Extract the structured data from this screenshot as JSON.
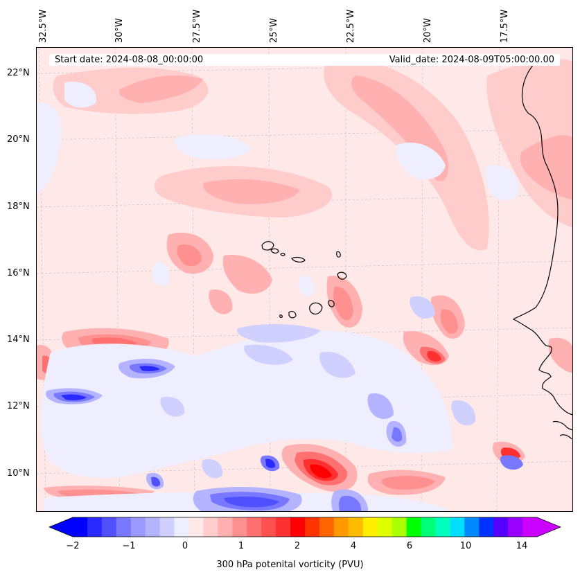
{
  "header": {
    "start_date": "Start date: 2024-08-08_00:00:00",
    "valid_date": "Valid_date: 2024-08-09T05:00:00.00"
  },
  "longitude_labels": [
    "32.5°W",
    "30°W",
    "27.5°W",
    "25°W",
    "22.5°W",
    "20°W",
    "17.5°W"
  ],
  "latitude_labels": [
    "22°N",
    "20°N",
    "18°N",
    "16°N",
    "14°N",
    "12°N",
    "10°N"
  ],
  "colorbar": {
    "label": "300 hPa potenital vorticity (PVU)",
    "tick_labels": [
      "−2",
      "−1",
      "0",
      "1",
      "2",
      "4",
      "6",
      "10",
      "14"
    ],
    "colors": [
      "#0000ff",
      "#2a2aff",
      "#5050ff",
      "#7777ff",
      "#9999ff",
      "#b3b3ff",
      "#d0d0ff",
      "#eeeeff",
      "#ffe8e8",
      "#ffcccc",
      "#ffb0b0",
      "#ff9090",
      "#ff7070",
      "#ff5050",
      "#ff3030",
      "#ff0000",
      "#ff3300",
      "#ff6600",
      "#ff9900",
      "#ffbb00",
      "#ffee00",
      "#ddff00",
      "#aaff00",
      "#00ff00",
      "#00ff77",
      "#00ffbb",
      "#00ddff",
      "#0088ff",
      "#0033ff",
      "#5500ff",
      "#9900ff",
      "#cc00ff"
    ],
    "under_color": "#0000ff",
    "over_color": "#cc00ff"
  },
  "map": {
    "background_color": "#ffe8e8",
    "coastline_color": "#000000"
  }
}
